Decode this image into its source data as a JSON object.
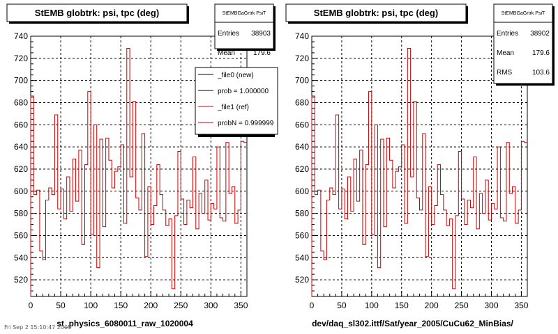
{
  "footer_stamp": "Fri Sep 2 15:10:47 2005",
  "chart_data": [
    {
      "type": "line",
      "title": "StEMB globtrk: psi, tpc (deg)",
      "xlabel": "st_physics_6080011_raw_1020004",
      "ylabel": "",
      "xlim": [
        0,
        360
      ],
      "ylim": [
        505,
        740
      ],
      "x_ticks": [
        0,
        50,
        100,
        150,
        200,
        250,
        300,
        350
      ],
      "y_ticks": [
        520,
        540,
        560,
        580,
        600,
        620,
        640,
        660,
        680,
        700,
        720,
        740
      ],
      "grid": true,
      "stats": {
        "title": "StEMBGaGrtrk PsiT",
        "rows": [
          {
            "label": "Entries",
            "value": "38903"
          },
          {
            "label": "Mean",
            "value": "179.6"
          }
        ]
      },
      "legend": {
        "placement": "top-right",
        "entries": [
          {
            "label": "_file0 (new)",
            "color": "#000000"
          },
          {
            "label": "prob = 1.000000",
            "color": "#000000"
          },
          {
            "label": "_file1 (ref)",
            "color": "#cc0000"
          },
          {
            "label": "probN = 0.999999",
            "color": "#cc0000"
          }
        ]
      },
      "series": [
        {
          "color": "#cc0000",
          "bin_width": 5,
          "x_start": 0,
          "values": [
            686,
            597,
            601,
            546,
            538,
            592,
            603,
            597,
            669,
            584,
            602,
            575,
            613,
            582,
            629,
            591,
            637,
            552,
            624,
            690,
            561,
            660,
            531,
            647,
            568,
            648,
            628,
            603,
            618,
            622,
            642,
            571,
            729,
            613,
            681,
            594,
            583,
            652,
            541,
            604,
            570,
            587,
            624,
            597,
            583,
            569,
            575,
            512,
            578,
            636,
            593,
            570,
            592,
            585,
            631,
            566,
            598,
            580,
            610,
            574,
            589,
            584,
            640,
            576,
            573,
            644,
            598,
            604,
            571,
            583,
            645,
            644
          ]
        }
      ]
    },
    {
      "type": "line",
      "title": "StEMB globtrk: psi, tpc (deg)",
      "xlabel": "dev/daq_sl302.ittf/Sat/year_2005/CuCu62_MinBias/",
      "ylabel": "",
      "xlim": [
        0,
        360
      ],
      "ylim": [
        505,
        740
      ],
      "x_ticks": [
        0,
        50,
        100,
        150,
        200,
        250,
        300,
        350
      ],
      "y_ticks": [
        520,
        540,
        560,
        580,
        600,
        620,
        640,
        660,
        680,
        700,
        720,
        740
      ],
      "grid": true,
      "stats": {
        "title": "StEMBGaGrtrk PsiT",
        "rows": [
          {
            "label": "Entries",
            "value": "38902"
          },
          {
            "label": "Mean",
            "value": "179.6"
          },
          {
            "label": "RMS",
            "value": "103.6"
          }
        ]
      },
      "legend": null,
      "series": [
        {
          "color": "#cc0000",
          "bin_width": 5,
          "x_start": 0,
          "values": [
            686,
            597,
            601,
            546,
            538,
            592,
            603,
            597,
            669,
            584,
            602,
            575,
            613,
            582,
            629,
            591,
            637,
            552,
            624,
            690,
            561,
            660,
            531,
            647,
            568,
            648,
            628,
            603,
            618,
            622,
            642,
            571,
            729,
            613,
            681,
            594,
            583,
            652,
            541,
            604,
            570,
            587,
            624,
            597,
            583,
            569,
            575,
            512,
            578,
            636,
            593,
            570,
            592,
            585,
            631,
            566,
            598,
            580,
            610,
            574,
            589,
            584,
            640,
            576,
            573,
            644,
            598,
            604,
            571,
            583,
            645,
            644
          ]
        }
      ]
    }
  ]
}
